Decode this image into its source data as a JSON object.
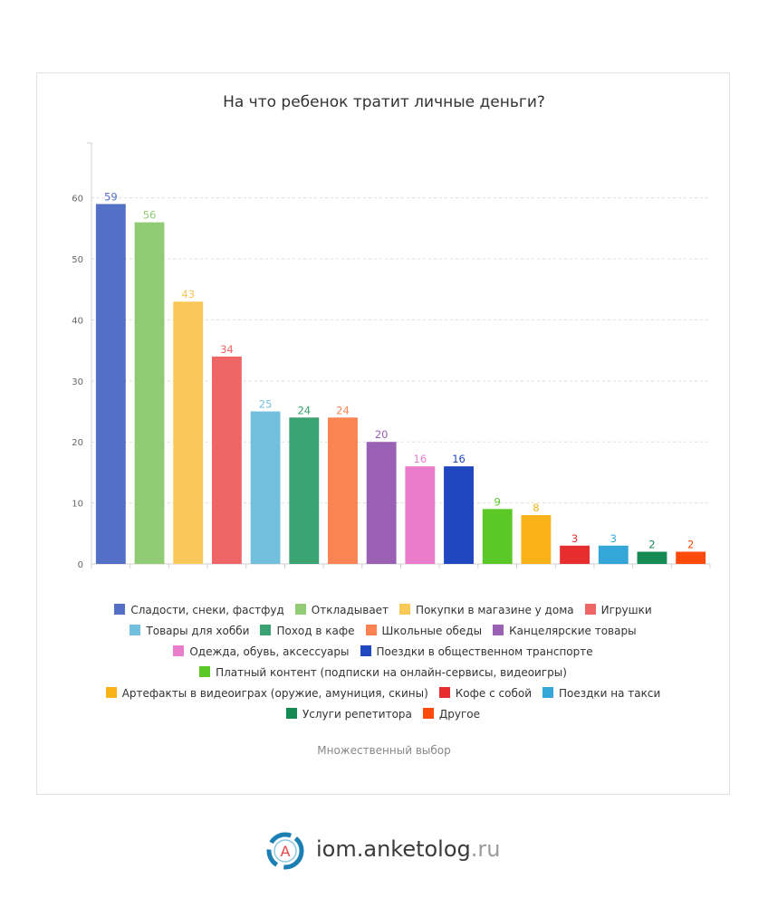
{
  "chart_data": {
    "type": "bar",
    "title": "На что ребенок тратит личные деньги?",
    "footnote": "Множественный выбор",
    "ylim": [
      0,
      69
    ],
    "yticks": [
      "0",
      "10",
      "20",
      "30",
      "40",
      "50",
      "60"
    ],
    "ytick_values": [
      0,
      10,
      20,
      30,
      40,
      50,
      60
    ],
    "grid": true,
    "legend_position": "bottom",
    "categories": [
      "Сладости, снеки, фастфуд",
      "Откладывает",
      "Покупки в магазине у дома",
      "Игрушки",
      "Товары для хобби",
      "Поход в кафе",
      "Школьные обеды",
      "Канцелярские товары",
      "Одежда, обувь, аксессуары",
      "Поездки в общественном транспорте",
      "Платный контент (подписки на онлайн-сервисы, видеоигры)",
      "Артефакты в видеоиграх (оружие, амуниция, скины)",
      "Кофе с собой",
      "Поездки на такси",
      "Услуги репетитора",
      "Другое"
    ],
    "values": [
      59,
      56,
      43,
      34,
      25,
      24,
      24,
      20,
      16,
      16,
      9,
      8,
      3,
      3,
      2,
      2
    ],
    "value_labels": [
      "59",
      "56",
      "43",
      "34",
      "25",
      "24",
      "24",
      "20",
      "16",
      "16",
      "9",
      "8",
      "3",
      "3",
      "2",
      "2"
    ],
    "colors": [
      "#5470c6",
      "#91cc75",
      "#fac858",
      "#ee6666",
      "#73c0de",
      "#3ba272",
      "#fc8452",
      "#9a60b4",
      "#ea7ccc",
      "#2047c0",
      "#5ac927",
      "#f9b218",
      "#e62e2e",
      "#34a6d8",
      "#168a53",
      "#fc4a0a"
    ],
    "legend_rows": [
      [
        0,
        1,
        2,
        3
      ],
      [
        4,
        5,
        6,
        7
      ],
      [
        8,
        9
      ],
      [
        10
      ],
      [
        11,
        12,
        13
      ],
      [
        14,
        15
      ]
    ]
  },
  "branding": {
    "logo_letter": "A",
    "site_name": "iom.anketolog",
    "site_tld": ".ru"
  }
}
